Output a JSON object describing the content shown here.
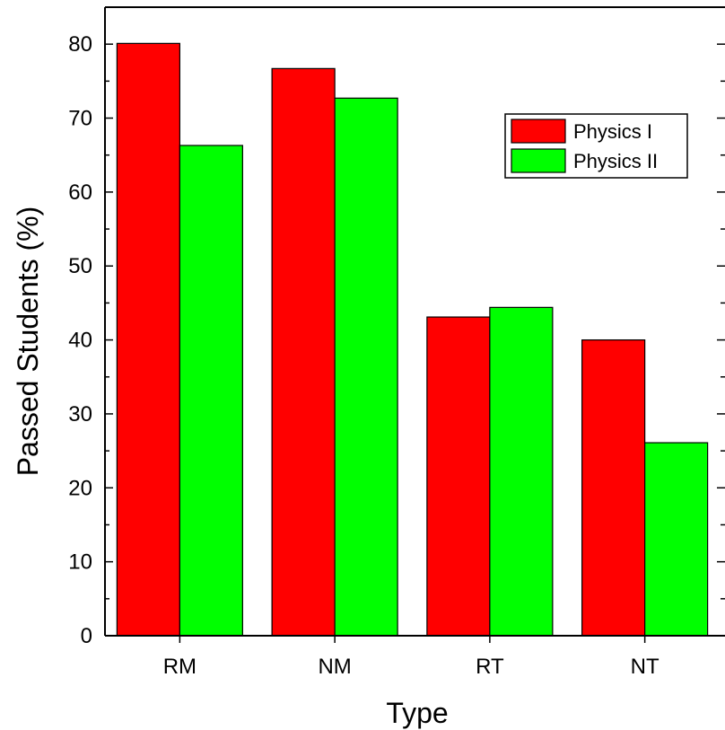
{
  "chart_data": {
    "type": "bar",
    "categories": [
      "RM",
      "NM",
      "RT",
      "NT"
    ],
    "series": [
      {
        "name": "Physics I",
        "color": "#ff0000",
        "values": [
          80.1,
          76.7,
          43.1,
          40.0
        ]
      },
      {
        "name": "Physics II",
        "color": "#00ff00",
        "values": [
          66.3,
          72.7,
          44.4,
          26.1
        ]
      }
    ],
    "xlabel": "Type",
    "ylabel": "Passed Students (%)",
    "ylim": [
      0,
      85
    ],
    "yticks": [
      0,
      10,
      20,
      30,
      40,
      50,
      60,
      70,
      80
    ],
    "legend_position": "top-right",
    "grid": false
  }
}
